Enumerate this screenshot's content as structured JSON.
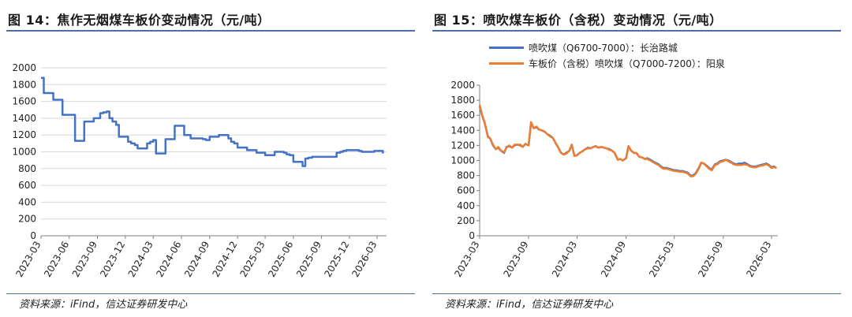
{
  "left_panel": {
    "title": "图 14：焦作无烟煤车板价变动情况（元/吨）",
    "source": "资料来源：iFind，信达证券研发中心"
  },
  "right_panel": {
    "title": "图 15：喷吹煤车板价（含税）变动情况（元/吨）",
    "source": "资料来源：iFind，信达证券研发中心"
  },
  "chart_data": [
    {
      "type": "line",
      "title": "图 14：焦作无烟煤车板价变动情况（元/吨）",
      "xlabel": "",
      "ylabel": "",
      "ylim": [
        0,
        2000
      ],
      "yticks": [
        0,
        200,
        400,
        600,
        800,
        1000,
        1200,
        1400,
        1600,
        1800,
        2000
      ],
      "x_range": [
        "2023-03-01",
        "2026-04-01"
      ],
      "xticks": [
        "2023-03",
        "2023-06",
        "2023-09",
        "2023-12",
        "2024-03",
        "2024-06",
        "2024-09",
        "2024-12",
        "2025-03",
        "2025-06",
        "2025-09",
        "2025-12",
        "2026-03"
      ],
      "grid": true,
      "legend": "none",
      "color": "#4472C4",
      "series": [
        {
          "x": [
            "2023-03-01",
            "2023-03-10",
            "2023-03-20",
            "2023-04-01",
            "2023-04-10",
            "2023-04-20",
            "2023-05-01",
            "2023-05-10",
            "2023-05-20",
            "2023-06-01",
            "2023-06-10",
            "2023-06-20",
            "2023-07-01",
            "2023-07-10",
            "2023-07-20",
            "2023-08-01",
            "2023-08-10",
            "2023-08-20",
            "2023-09-01",
            "2023-09-10",
            "2023-09-20",
            "2023-10-01",
            "2023-10-10",
            "2023-10-20",
            "2023-11-01",
            "2023-11-10",
            "2023-11-20",
            "2023-12-01",
            "2023-12-10",
            "2023-12-20",
            "2024-01-01",
            "2024-01-10",
            "2024-01-20",
            "2024-02-01",
            "2024-02-10",
            "2024-02-20",
            "2024-03-01",
            "2024-03-10",
            "2024-03-20",
            "2024-04-01",
            "2024-04-10",
            "2024-04-20",
            "2024-05-01",
            "2024-05-10",
            "2024-05-20",
            "2024-06-01",
            "2024-06-10",
            "2024-06-20",
            "2024-07-01",
            "2024-07-10",
            "2024-07-20",
            "2024-08-01",
            "2024-08-10",
            "2024-08-20",
            "2024-09-01",
            "2024-09-10",
            "2024-09-20",
            "2024-10-01",
            "2024-10-10",
            "2024-10-20",
            "2024-11-01",
            "2024-11-10",
            "2024-11-20",
            "2024-12-01",
            "2024-12-10",
            "2024-12-20",
            "2025-01-01",
            "2025-01-10",
            "2025-01-20",
            "2025-02-01",
            "2025-02-10",
            "2025-02-20",
            "2025-03-01",
            "2025-03-10",
            "2025-03-20",
            "2025-04-01",
            "2025-04-10",
            "2025-04-20",
            "2025-05-01",
            "2025-05-10",
            "2025-05-20",
            "2025-06-01",
            "2025-06-10",
            "2025-06-20",
            "2025-07-01",
            "2025-07-10",
            "2025-07-20",
            "2025-08-01",
            "2025-08-10",
            "2025-08-20",
            "2025-09-01",
            "2025-09-10",
            "2025-09-20",
            "2025-10-01",
            "2025-10-10",
            "2025-10-20",
            "2025-11-01",
            "2025-11-10",
            "2025-11-20",
            "2025-12-01",
            "2025-12-10",
            "2025-12-20",
            "2026-01-01",
            "2026-01-10",
            "2026-01-20",
            "2026-02-01",
            "2026-02-10",
            "2026-02-20",
            "2026-03-01",
            "2026-03-10",
            "2026-03-20"
          ],
          "y": [
            1880,
            1700,
            1700,
            1700,
            1620,
            1620,
            1620,
            1440,
            1440,
            1440,
            1440,
            1130,
            1130,
            1130,
            1360,
            1360,
            1360,
            1400,
            1400,
            1460,
            1470,
            1480,
            1400,
            1360,
            1320,
            1180,
            1180,
            1180,
            1120,
            1100,
            1080,
            1040,
            1040,
            1040,
            1100,
            1120,
            1140,
            980,
            980,
            980,
            1150,
            1150,
            1150,
            1310,
            1310,
            1310,
            1200,
            1200,
            1160,
            1160,
            1160,
            1160,
            1150,
            1140,
            1180,
            1180,
            1180,
            1200,
            1200,
            1200,
            1160,
            1120,
            1100,
            1050,
            1050,
            1050,
            1020,
            1020,
            1020,
            990,
            990,
            990,
            960,
            960,
            960,
            1000,
            1000,
            1000,
            990,
            970,
            960,
            880,
            880,
            880,
            830,
            920,
            930,
            940,
            940,
            940,
            940,
            940,
            940,
            940,
            940,
            990,
            1000,
            1010,
            1020,
            1020,
            1020,
            1020,
            1010,
            1000,
            1000,
            1000,
            1000,
            1010,
            1010,
            1010,
            980
          ]
        }
      ]
    },
    {
      "type": "line",
      "title": "图 15：喷吹煤车板价（含税）变动情况（元/吨）",
      "xlabel": "",
      "ylabel": "",
      "ylim": [
        0,
        2000
      ],
      "yticks": [
        0,
        200,
        400,
        600,
        800,
        1000,
        1200,
        1400,
        1600,
        1800,
        2000
      ],
      "x_range": [
        "2023-03-01",
        "2026-03-25"
      ],
      "xticks": [
        "2023-03",
        "2023-09",
        "2024-03",
        "2024-09",
        "2025-03",
        "2025-09",
        "2026-03"
      ],
      "grid": false,
      "legend": "top",
      "series": [
        {
          "name": "喷吹煤（Q6700-7000）：长治路城",
          "color": "#4472C4",
          "x": [
            "2023-03-01",
            "2023-03-10",
            "2023-03-20",
            "2023-04-01",
            "2023-04-10",
            "2023-04-20",
            "2023-05-01",
            "2023-05-10",
            "2023-05-20",
            "2023-06-01",
            "2023-06-10",
            "2023-06-20",
            "2023-07-01",
            "2023-07-10",
            "2023-07-20",
            "2023-08-01",
            "2023-08-10",
            "2023-08-20",
            "2023-09-01",
            "2023-09-10",
            "2023-09-20",
            "2023-10-01",
            "2023-10-10",
            "2023-10-20",
            "2023-11-01",
            "2023-11-10",
            "2023-11-20",
            "2023-12-01",
            "2023-12-10",
            "2023-12-20",
            "2024-01-01",
            "2024-01-10",
            "2024-01-20",
            "2024-02-01",
            "2024-02-10",
            "2024-02-20",
            "2024-03-01",
            "2024-03-10",
            "2024-03-20",
            "2024-04-01",
            "2024-04-10",
            "2024-04-20",
            "2024-05-01",
            "2024-05-10",
            "2024-05-20",
            "2024-06-01",
            "2024-06-10",
            "2024-06-20",
            "2024-07-01",
            "2024-07-10",
            "2024-07-20",
            "2024-08-01",
            "2024-08-10",
            "2024-08-20",
            "2024-09-01",
            "2024-09-10",
            "2024-09-20",
            "2024-10-01",
            "2024-10-10",
            "2024-10-20",
            "2024-11-01",
            "2024-11-10",
            "2024-11-20",
            "2024-12-01",
            "2024-12-10",
            "2024-12-20",
            "2025-01-01",
            "2025-01-10",
            "2025-01-20",
            "2025-02-01",
            "2025-02-10",
            "2025-02-20",
            "2025-03-01",
            "2025-03-10",
            "2025-03-20",
            "2025-04-01",
            "2025-04-10",
            "2025-04-20",
            "2025-05-01",
            "2025-05-10",
            "2025-05-20",
            "2025-06-01",
            "2025-06-10",
            "2025-06-20",
            "2025-07-01",
            "2025-07-10",
            "2025-07-20",
            "2025-08-01",
            "2025-08-10",
            "2025-08-20",
            "2025-09-01",
            "2025-09-10",
            "2025-09-20",
            "2025-10-01",
            "2025-10-10",
            "2025-10-20",
            "2025-11-01",
            "2025-11-10",
            "2025-11-20",
            "2025-12-01",
            "2025-12-10",
            "2025-12-20",
            "2026-01-01",
            "2026-01-10",
            "2026-01-20",
            "2026-02-01",
            "2026-02-10",
            "2026-02-20",
            "2026-03-01",
            "2026-03-10",
            "2026-03-20"
          ],
          "y": [
            1720,
            1600,
            1500,
            1320,
            1290,
            1200,
            1150,
            1170,
            1130,
            1100,
            1180,
            1190,
            1170,
            1200,
            1210,
            1200,
            1180,
            1220,
            1200,
            1500,
            1430,
            1440,
            1410,
            1400,
            1380,
            1350,
            1330,
            1300,
            1240,
            1180,
            1100,
            1080,
            1100,
            1130,
            1210,
            1060,
            1070,
            1100,
            1120,
            1150,
            1170,
            1160,
            1180,
            1190,
            1170,
            1180,
            1170,
            1160,
            1150,
            1130,
            1100,
            1010,
            1020,
            1000,
            1030,
            1190,
            1130,
            1100,
            1100,
            1050,
            1040,
            1020,
            1030,
            1010,
            990,
            970,
            950,
            920,
            900,
            900,
            890,
            880,
            870,
            870,
            860,
            860,
            850,
            840,
            800,
            800,
            830,
            900,
            970,
            960,
            930,
            900,
            880,
            950,
            960,
            990,
            1000,
            1010,
            1000,
            980,
            960,
            950,
            960,
            960,
            970,
            950,
            930,
            920,
            920,
            930,
            940,
            950,
            960,
            940,
            910,
            920,
            900
          ],
          "y_note": ""
        },
        {
          "name": "车板价（含税）喷吹煤（Q7000-7200）：阳泉",
          "color": "#ED7D31",
          "x": [
            "2023-03-01",
            "2023-03-10",
            "2023-03-20",
            "2023-04-01",
            "2023-04-10",
            "2023-04-20",
            "2023-05-01",
            "2023-05-10",
            "2023-05-20",
            "2023-06-01",
            "2023-06-10",
            "2023-06-20",
            "2023-07-01",
            "2023-07-10",
            "2023-07-20",
            "2023-08-01",
            "2023-08-10",
            "2023-08-20",
            "2023-09-01",
            "2023-09-10",
            "2023-09-20",
            "2023-10-01",
            "2023-10-10",
            "2023-10-20",
            "2023-11-01",
            "2023-11-10",
            "2023-11-20",
            "2023-12-01",
            "2023-12-10",
            "2023-12-20",
            "2024-01-01",
            "2024-01-10",
            "2024-01-20",
            "2024-02-01",
            "2024-02-10",
            "2024-02-20",
            "2024-03-01",
            "2024-03-10",
            "2024-03-20",
            "2024-04-01",
            "2024-04-10",
            "2024-04-20",
            "2024-05-01",
            "2024-05-10",
            "2024-05-20",
            "2024-06-01",
            "2024-06-10",
            "2024-06-20",
            "2024-07-01",
            "2024-07-10",
            "2024-07-20",
            "2024-08-01",
            "2024-08-10",
            "2024-08-20",
            "2024-09-01",
            "2024-09-10",
            "2024-09-20",
            "2024-10-01",
            "2024-10-10",
            "2024-10-20",
            "2024-11-01",
            "2024-11-10",
            "2024-11-20",
            "2024-12-01",
            "2024-12-10",
            "2024-12-20",
            "2025-01-01",
            "2025-01-10",
            "2025-01-20",
            "2025-02-01",
            "2025-02-10",
            "2025-02-20",
            "2025-03-01",
            "2025-03-10",
            "2025-03-20",
            "2025-04-01",
            "2025-04-10",
            "2025-04-20",
            "2025-05-01",
            "2025-05-10",
            "2025-05-20",
            "2025-06-01",
            "2025-06-10",
            "2025-06-20",
            "2025-07-01",
            "2025-07-10",
            "2025-07-20",
            "2025-08-01",
            "2025-08-10",
            "2025-08-20",
            "2025-09-01",
            "2025-09-10",
            "2025-09-20",
            "2025-10-01",
            "2025-10-10",
            "2025-10-20",
            "2025-11-01",
            "2025-11-10",
            "2025-11-20",
            "2025-12-01",
            "2025-12-10",
            "2025-12-20",
            "2026-01-01",
            "2026-01-10",
            "2026-01-20",
            "2026-02-01",
            "2026-02-10",
            "2026-02-20",
            "2026-03-01",
            "2026-03-10",
            "2026-03-20"
          ],
          "y": [
            1740,
            1610,
            1500,
            1310,
            1290,
            1210,
            1150,
            1180,
            1130,
            1110,
            1170,
            1200,
            1170,
            1210,
            1210,
            1210,
            1180,
            1220,
            1200,
            1510,
            1430,
            1450,
            1410,
            1400,
            1380,
            1350,
            1320,
            1300,
            1240,
            1180,
            1100,
            1080,
            1090,
            1130,
            1210,
            1060,
            1070,
            1100,
            1120,
            1150,
            1160,
            1160,
            1180,
            1190,
            1170,
            1180,
            1170,
            1160,
            1140,
            1130,
            1100,
            1010,
            1020,
            1000,
            1030,
            1190,
            1130,
            1100,
            1100,
            1050,
            1040,
            1020,
            1020,
            1000,
            980,
            960,
            940,
            910,
            890,
            890,
            880,
            870,
            860,
            860,
            850,
            850,
            840,
            830,
            790,
            790,
            820,
            890,
            970,
            960,
            920,
            890,
            870,
            940,
            950,
            980,
            990,
            1010,
            990,
            970,
            950,
            940,
            940,
            940,
            950,
            940,
            920,
            910,
            910,
            920,
            930,
            940,
            950,
            930,
            900,
            910,
            900
          ]
        }
      ]
    }
  ]
}
